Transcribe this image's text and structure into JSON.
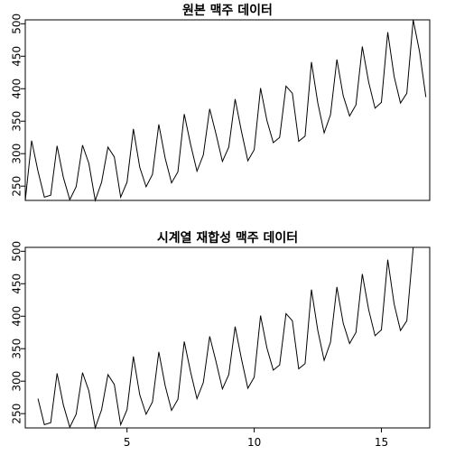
{
  "chart_data": [
    {
      "type": "line",
      "title": "원본 맥주 데이터",
      "xlabel": "",
      "ylabel": "",
      "xlim": [
        1,
        16.9
      ],
      "ylim": [
        228,
        506
      ],
      "yticks": [
        250,
        300,
        350,
        400,
        450,
        500
      ],
      "xticks": [],
      "frequency": 4,
      "start": 1,
      "values": [
        228,
        320,
        273,
        233,
        236,
        312,
        263,
        229,
        249,
        313,
        285,
        228,
        256,
        310,
        295,
        233,
        256,
        338,
        279,
        249,
        268,
        345,
        293,
        255,
        272,
        361,
        314,
        273,
        298,
        369,
        330,
        288,
        310,
        384,
        334,
        289,
        306,
        401,
        351,
        317,
        325,
        404,
        393,
        319,
        327,
        441,
        378,
        332,
        360,
        445,
        389,
        358,
        375,
        465,
        410,
        370,
        379,
        487,
        419,
        378,
        393,
        506,
        457,
        387
      ]
    },
    {
      "type": "line",
      "title": "시계열 재합성 맥주 데이터",
      "xlabel": "",
      "ylabel": "",
      "xlim": [
        1,
        16.9
      ],
      "ylim": [
        228,
        506
      ],
      "yticks": [
        250,
        300,
        350,
        400,
        450,
        500
      ],
      "xticks": [
        5,
        10,
        15
      ],
      "frequency": 4,
      "start": 1.5,
      "values": [
        273,
        233,
        236,
        312,
        263,
        229,
        249,
        313,
        285,
        228,
        256,
        310,
        295,
        233,
        256,
        338,
        279,
        249,
        268,
        345,
        293,
        255,
        272,
        361,
        314,
        273,
        298,
        369,
        330,
        288,
        310,
        384,
        334,
        289,
        306,
        401,
        351,
        317,
        325,
        404,
        393,
        319,
        327,
        441,
        378,
        332,
        360,
        445,
        389,
        358,
        375,
        465,
        410,
        370,
        379,
        487,
        419,
        378,
        393,
        506
      ]
    }
  ]
}
